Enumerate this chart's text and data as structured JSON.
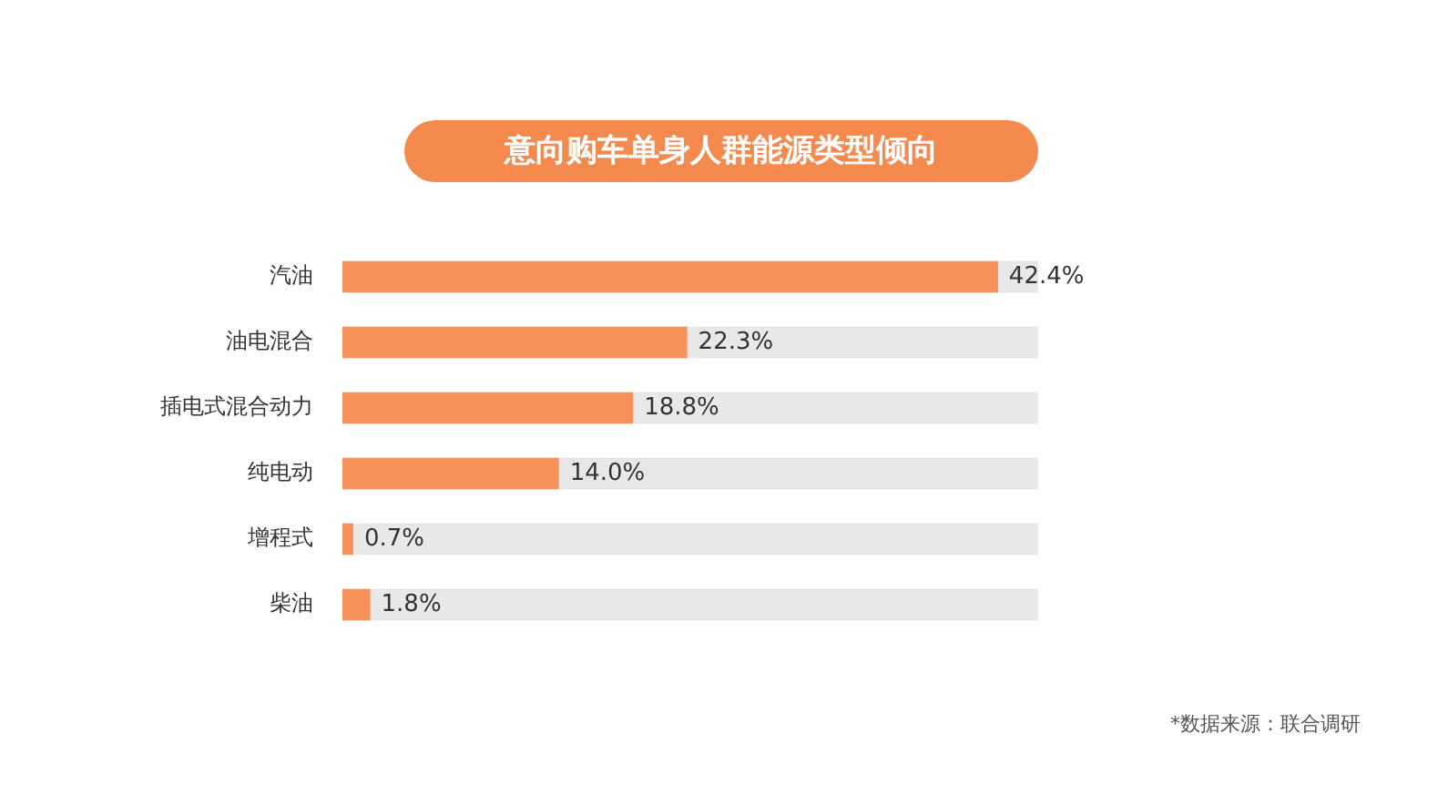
{
  "chart_data": {
    "type": "bar",
    "orientation": "horizontal",
    "title": "意向购车单身人群能源类型倾向",
    "categories": [
      "汽油",
      "油电混合",
      "插电式混合动力",
      "纯电动",
      "增程式",
      "柴油"
    ],
    "values": [
      42.4,
      22.3,
      18.8,
      14.0,
      0.7,
      1.8
    ],
    "value_labels": [
      "42.4%",
      "22.3%",
      "18.8%",
      "14.0%",
      "0.7%",
      "1.8%"
    ],
    "color": "#f59159",
    "tick_labels": "y",
    "annotations": [
      "*数据来源：联合调研"
    ]
  }
}
